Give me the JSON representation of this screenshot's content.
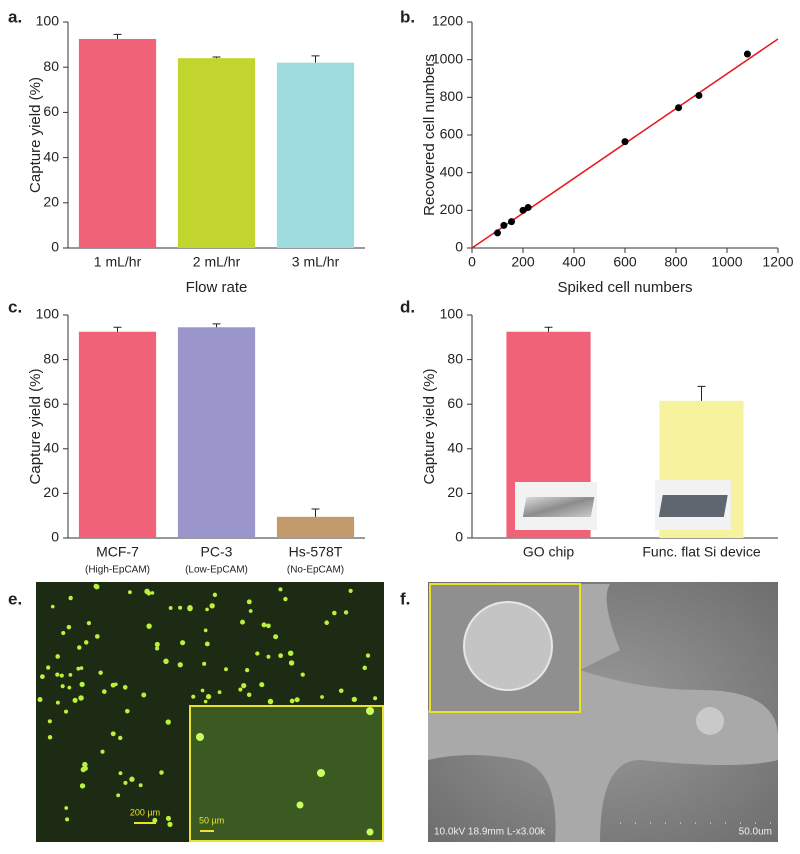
{
  "chart_data": [
    {
      "type": "bar",
      "panel_label": "a.",
      "xlabel": "Flow rate",
      "ylabel": "Capture yield (%)",
      "categories": [
        "1 mL/hr",
        "2 mL/hr",
        "3 mL/hr"
      ],
      "values": [
        92.5,
        84,
        82
      ],
      "errors": [
        2,
        0.5,
        3
      ],
      "colors": [
        "#f06277",
        "#c2d52e",
        "#9fdcdf"
      ],
      "ylim": [
        0,
        100
      ],
      "yticks": [
        0,
        20,
        40,
        60,
        80,
        100
      ]
    },
    {
      "type": "scatter",
      "panel_label": "b.",
      "xlabel": "Spiked cell numbers",
      "ylabel": "Recovered cell numbers",
      "x": [
        100,
        125,
        155,
        200,
        220,
        600,
        810,
        890,
        1080
      ],
      "y": [
        80,
        120,
        140,
        200,
        215,
        565,
        745,
        810,
        1030
      ],
      "color": "#000000",
      "fit_line": {
        "x": [
          0,
          1200
        ],
        "y": [
          0,
          1110
        ],
        "color": "#e8161b"
      },
      "xlim": [
        0,
        1200
      ],
      "xticks": [
        0,
        200,
        400,
        600,
        800,
        1000,
        1200
      ],
      "ylim": [
        0,
        1200
      ],
      "yticks": [
        0,
        200,
        400,
        600,
        800,
        1000,
        1200
      ]
    },
    {
      "type": "bar",
      "panel_label": "c.",
      "ylabel": "Capture yield (%)",
      "categories": [
        "MCF-7",
        "PC-3",
        "Hs-578T"
      ],
      "subcategories": [
        "(High-EpCAM)",
        "(Low-EpCAM)",
        "(No-EpCAM)"
      ],
      "values": [
        92.5,
        94.5,
        9.5
      ],
      "errors": [
        2,
        1.5,
        3.5
      ],
      "colors": [
        "#f06277",
        "#9a96cc",
        "#c39a6c"
      ],
      "ylim": [
        0,
        100
      ],
      "yticks": [
        0,
        20,
        40,
        60,
        80,
        100
      ]
    },
    {
      "type": "bar",
      "panel_label": "d.",
      "ylabel": "Capture yield (%)",
      "categories": [
        "GO chip",
        "Func. flat Si device"
      ],
      "values": [
        92.5,
        61.5
      ],
      "errors": [
        2,
        6.5
      ],
      "colors": [
        "#f06277",
        "#f7f29e"
      ],
      "ylim": [
        0,
        100
      ],
      "yticks": [
        0,
        20,
        40,
        60,
        80,
        100
      ]
    }
  ],
  "panels": [
    {
      "label": "e.",
      "scale_bar": "200 µm",
      "inset_scale_bar": "50 µm"
    },
    {
      "label": "f.",
      "info": "10.0kV 18.9mm L-x3.00k",
      "scale_bar": "50.0um"
    }
  ]
}
